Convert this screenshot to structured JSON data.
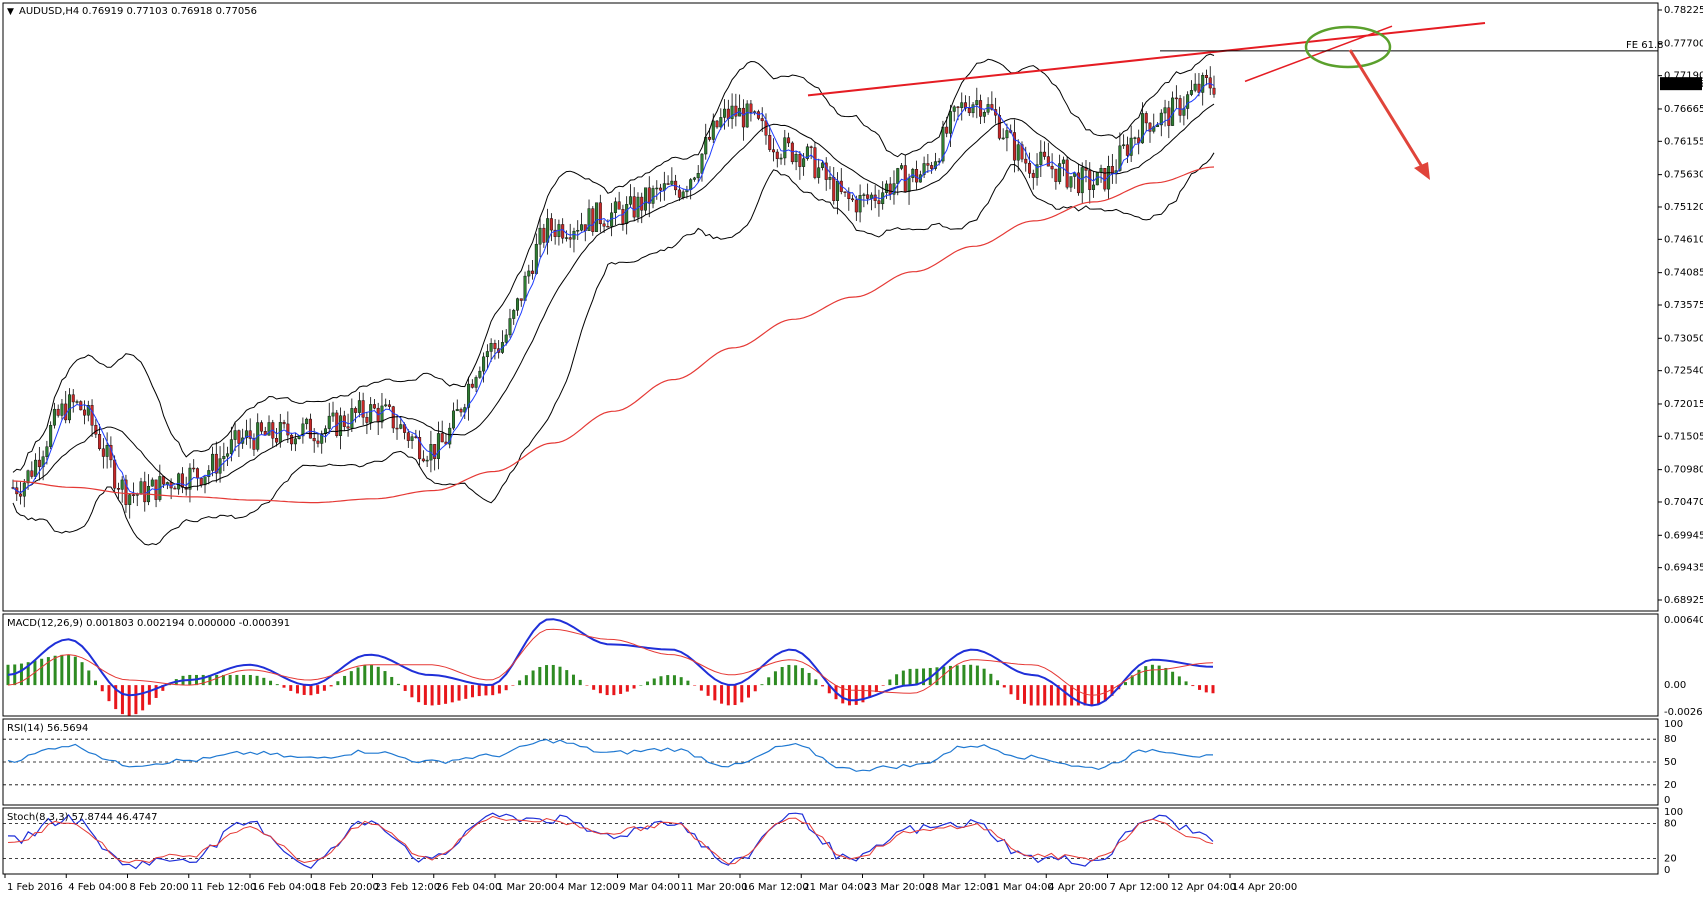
{
  "header": {
    "symbol": "AUDUSD,H4",
    "ohlc": "0.76919 0.77103 0.76918 0.77056",
    "menu_icon": "triangle-down-icon"
  },
  "price_scale": {
    "ticks": [
      "0.78225",
      "0.77700",
      "0.77190",
      "0.76665",
      "0.76155",
      "0.75630",
      "0.75120",
      "0.74610",
      "0.74085",
      "0.73575",
      "0.73050",
      "0.72540",
      "0.72015",
      "0.71505",
      "0.70980",
      "0.70470",
      "0.69945",
      "0.69435",
      "0.68925"
    ],
    "current_price": "0.77056",
    "fe_label": "FE 61.8"
  },
  "time_axis": {
    "labels": [
      "1 Feb 2016",
      "4 Feb 04:00",
      "8 Feb 20:00",
      "11 Feb 12:00",
      "16 Feb 04:00",
      "18 Feb 20:00",
      "23 Feb 12:00",
      "26 Feb 04:00",
      "1 Mar 20:00",
      "4 Mar 12:00",
      "9 Mar 04:00",
      "11 Mar 20:00",
      "16 Mar 12:00",
      "21 Mar 04:00",
      "23 Mar 20:00",
      "28 Mar 12:00",
      "31 Mar 04:00",
      "4 Apr 20:00",
      "7 Apr 12:00",
      "12 Apr 04:00",
      "14 Apr 20:00"
    ]
  },
  "macd": {
    "label": "MACD(12,26,9) 0.001803 0.002194 0.000000 -0.000391",
    "ticks": [
      "0.006401",
      "0.00",
      "-0.002642"
    ]
  },
  "rsi": {
    "label": "RSI(14) 56.5694",
    "ticks": [
      "100",
      "80",
      "50",
      "20",
      "0"
    ]
  },
  "stoch": {
    "label": "Stoch(8,3,3) 57.8744 46.4747",
    "ticks": [
      "100",
      "80",
      "20",
      "0"
    ]
  },
  "colors": {
    "bull_candle": "#2e7d32",
    "bear_candle": "#c62828",
    "bollinger": "#000000",
    "ma200": "#e53935",
    "ma_fast": "#1e3cff",
    "trendline": "#e51c23",
    "ellipse": "#5aa02c",
    "arrow": "#e0443a",
    "macd_main": "#1f2fd8",
    "macd_signal": "#e53935",
    "hist_pos": "#2e8b22",
    "hist_neg": "#e8161b",
    "rsi_line": "#1f78d1"
  },
  "chart_data": [
    {
      "type": "candlestick",
      "title": "AUDUSD,H4",
      "ylim": [
        0.68925,
        0.78225
      ],
      "x": [
        "1 Feb 2016",
        "4 Feb 04:00",
        "8 Feb 20:00",
        "11 Feb 12:00",
        "16 Feb 04:00",
        "18 Feb 20:00",
        "23 Feb 12:00",
        "26 Feb 04:00",
        "1 Mar 20:00",
        "4 Mar 12:00",
        "9 Mar 04:00",
        "11 Mar 20:00",
        "16 Mar 12:00",
        "21 Mar 04:00",
        "23 Mar 20:00",
        "28 Mar 12:00",
        "31 Mar 04:00",
        "4 Apr 20:00",
        "7 Apr 12:00",
        "12 Apr 04:00",
        "14 Apr 20:00"
      ],
      "close": [
        0.707,
        0.72,
        0.706,
        0.709,
        0.715,
        0.716,
        0.719,
        0.713,
        0.729,
        0.748,
        0.75,
        0.754,
        0.766,
        0.76,
        0.752,
        0.756,
        0.768,
        0.758,
        0.755,
        0.765,
        0.7706
      ],
      "ma200": [
        0.708,
        0.707,
        0.706,
        0.7055,
        0.705,
        0.7046,
        0.7052,
        0.7065,
        0.7095,
        0.714,
        0.719,
        0.724,
        0.729,
        0.7335,
        0.737,
        0.741,
        0.745,
        0.749,
        0.752,
        0.755,
        0.7575
      ],
      "fe_level": 0.7758,
      "current_price": 0.77056
    },
    {
      "type": "line",
      "name": "MACD(12,26,9)",
      "ylim": [
        -0.002642,
        0.006401
      ],
      "series": [
        {
          "name": "main",
          "values": [
            0.001,
            0.0045,
            -0.001,
            0.0005,
            0.002,
            0.0,
            0.003,
            0.001,
            0.0,
            0.0065,
            0.004,
            0.0035,
            0.0,
            0.0035,
            -0.0015,
            0.0,
            0.0035,
            0.001,
            -0.002,
            0.0025,
            0.0018
          ]
        },
        {
          "name": "signal",
          "values": [
            0.0,
            0.003,
            0.0005,
            0.0,
            0.0015,
            0.0005,
            0.002,
            0.002,
            0.0005,
            0.0055,
            0.0045,
            0.003,
            0.001,
            0.0025,
            -0.0005,
            -0.0008,
            0.0025,
            0.002,
            -0.001,
            0.0015,
            0.0022
          ]
        }
      ]
    },
    {
      "type": "line",
      "name": "RSI(14)",
      "ylim": [
        0,
        100
      ],
      "levels": [
        80,
        50,
        20
      ],
      "values": [
        52,
        72,
        46,
        52,
        62,
        55,
        64,
        50,
        58,
        78,
        62,
        67,
        45,
        72,
        40,
        45,
        72,
        56,
        42,
        66,
        56.57
      ]
    },
    {
      "type": "line",
      "name": "Stoch(8,3,3)",
      "ylim": [
        0,
        100
      ],
      "levels": [
        80,
        20
      ],
      "series": [
        {
          "name": "main",
          "values": [
            50,
            90,
            10,
            20,
            80,
            10,
            85,
            15,
            92,
            88,
            60,
            85,
            10,
            95,
            15,
            70,
            80,
            20,
            15,
            90,
            57.87
          ]
        },
        {
          "name": "signal",
          "values": [
            45,
            85,
            15,
            25,
            75,
            15,
            80,
            20,
            88,
            85,
            65,
            80,
            15,
            92,
            20,
            65,
            78,
            25,
            20,
            85,
            46.47
          ]
        }
      ]
    }
  ]
}
